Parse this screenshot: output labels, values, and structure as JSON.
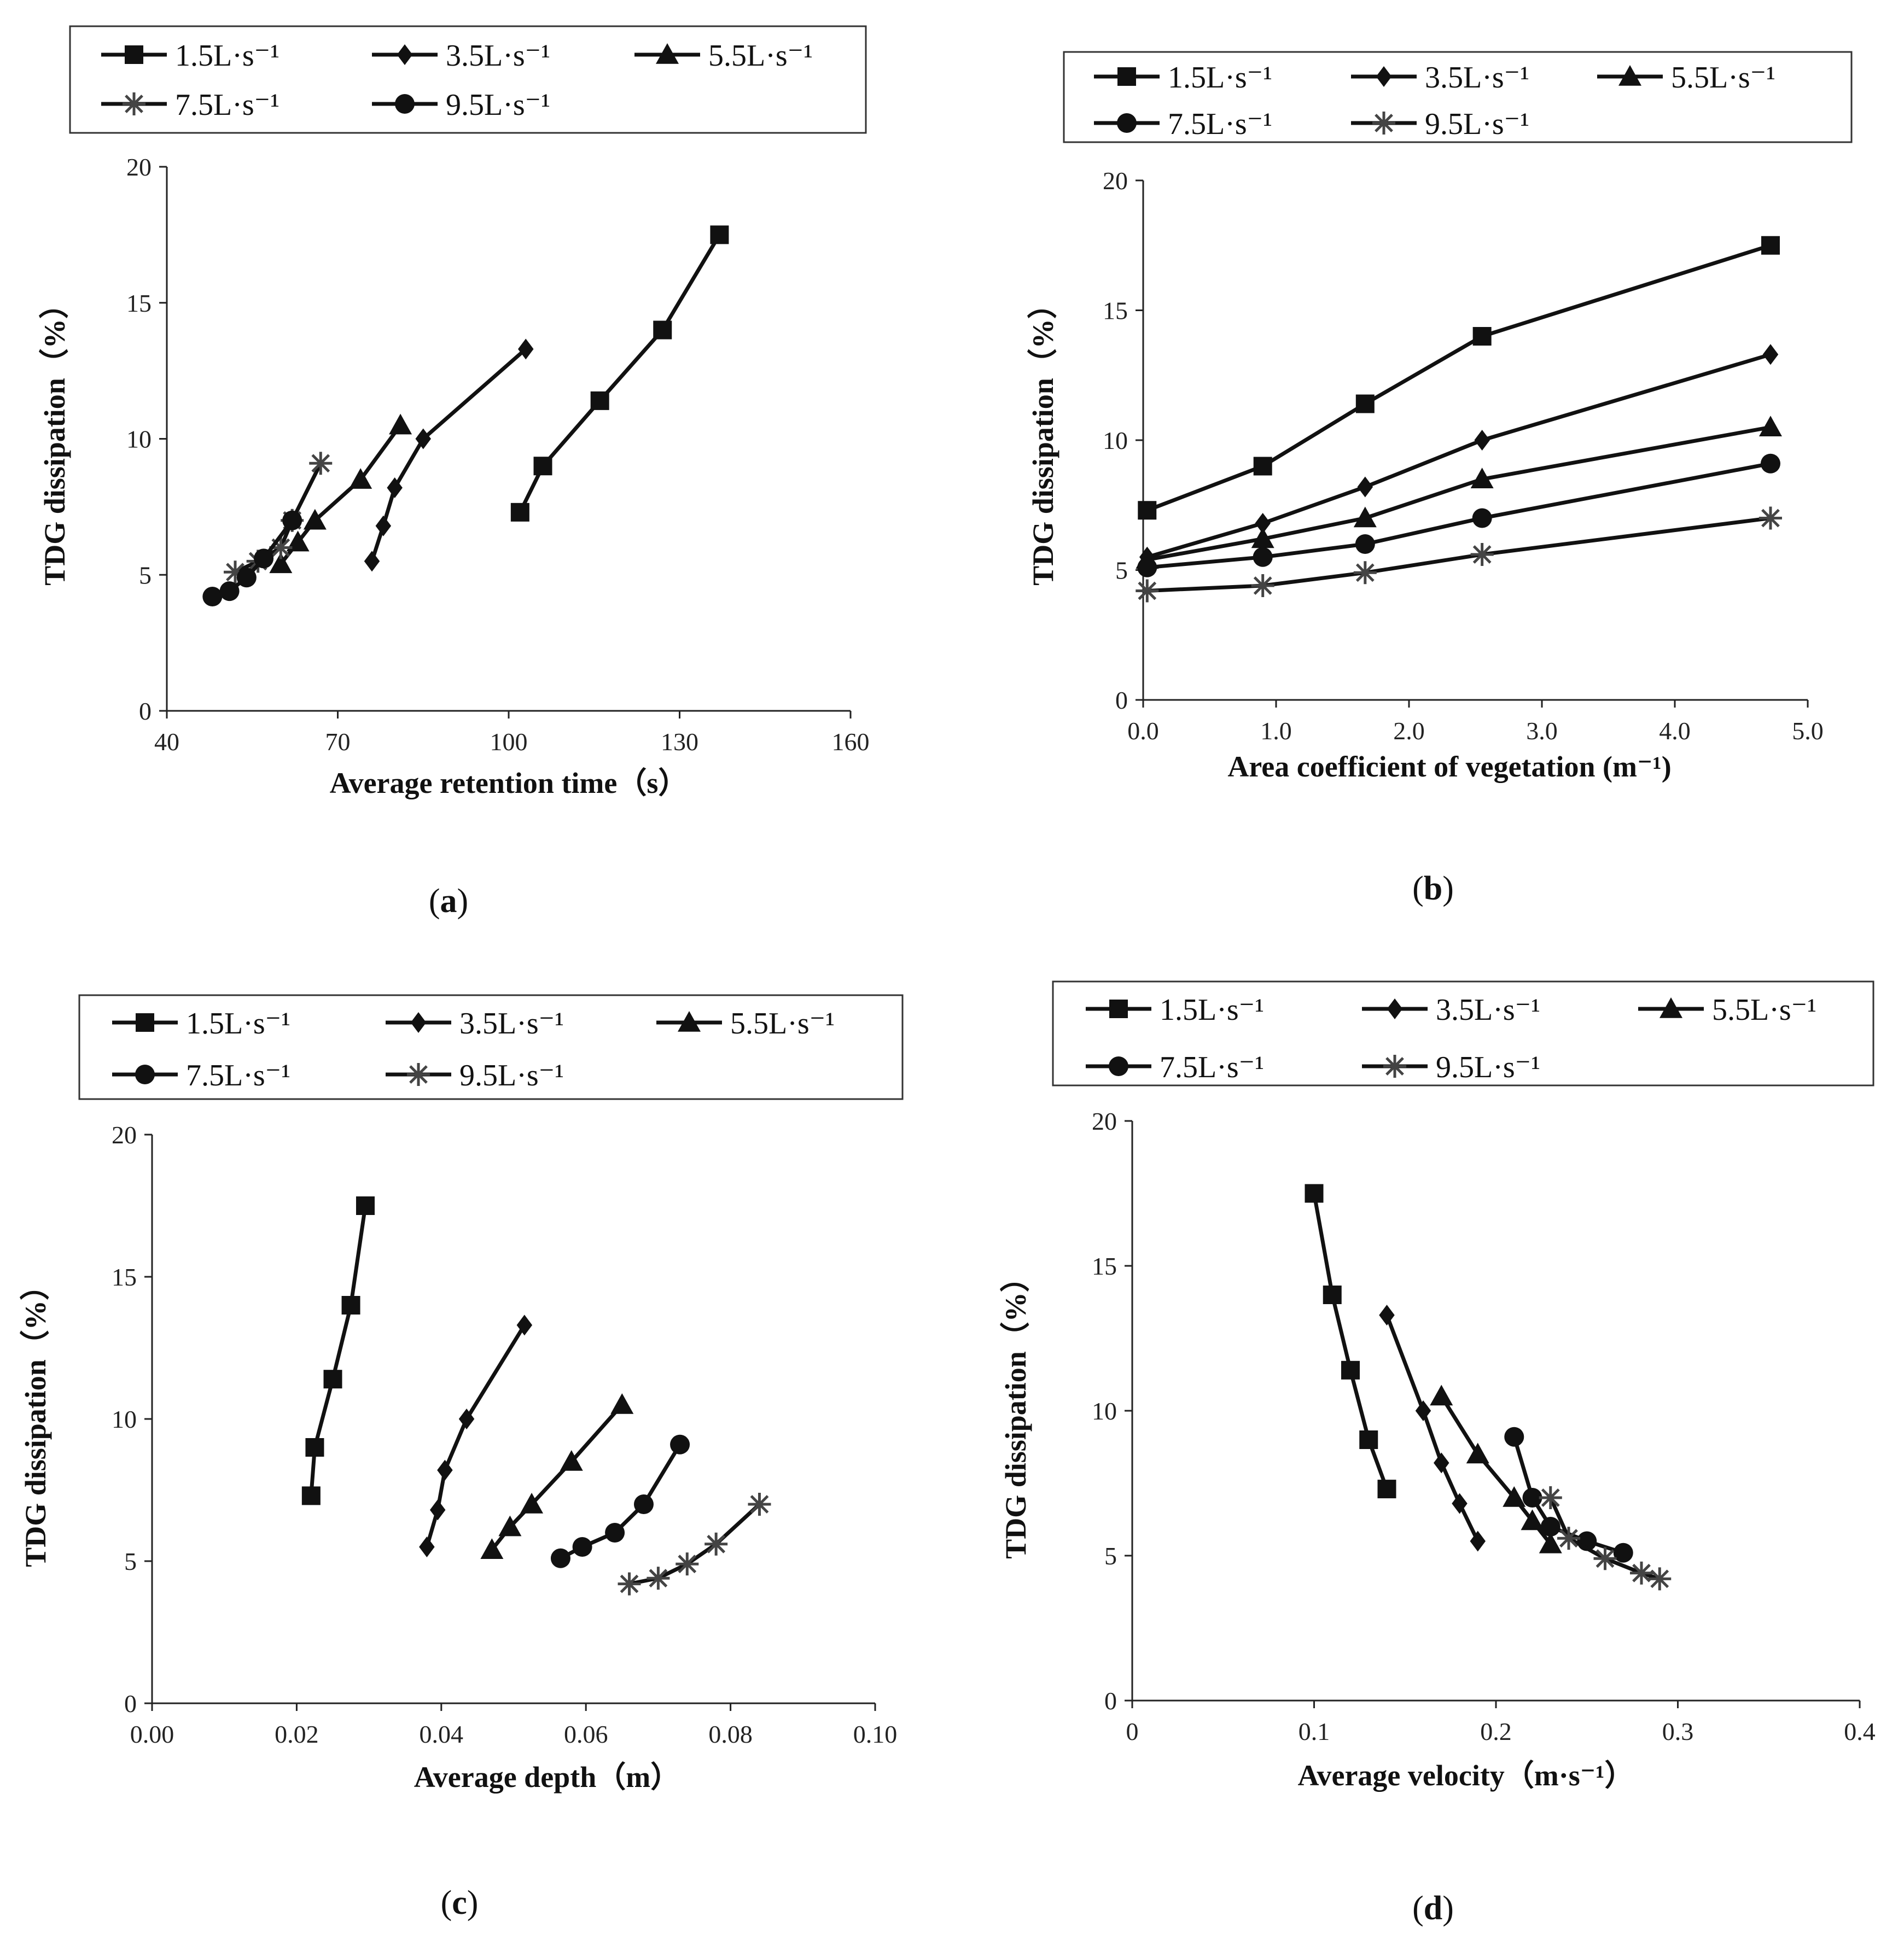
{
  "chart_data": [
    {
      "id": "a",
      "panel_label": "a",
      "type": "line",
      "xlabel": "Average retention time（s）",
      "ylabel": "TDG dissipation（%）",
      "xlim": [
        40,
        160
      ],
      "ylim": [
        0,
        20
      ],
      "xticks": [
        "40",
        "70",
        "100",
        "130",
        "160"
      ],
      "yticks": [
        "0",
        "5",
        "10",
        "15",
        "20"
      ],
      "legend": [
        "1.5L·s⁻¹",
        "3.5L·s⁻¹",
        "5.5L·s⁻¹",
        "7.5L·s⁻¹",
        "9.5L·s⁻¹"
      ],
      "series": [
        {
          "name": "1.5L·s⁻¹",
          "marker": "square",
          "x": [
            102,
            106,
            116,
            127,
            137
          ],
          "y": [
            7.3,
            9.0,
            11.4,
            14.0,
            17.5
          ]
        },
        {
          "name": "3.5L·s⁻¹",
          "marker": "diamond",
          "x": [
            76,
            78,
            80,
            85,
            103
          ],
          "y": [
            5.5,
            6.8,
            8.2,
            10.0,
            13.3
          ]
        },
        {
          "name": "5.5L·s⁻¹",
          "marker": "triangle",
          "x": [
            60,
            63,
            66,
            74,
            81
          ],
          "y": [
            5.4,
            6.2,
            7.0,
            8.5,
            10.5
          ]
        },
        {
          "name": "7.5L·s⁻¹",
          "marker": "asterisk",
          "x": [
            52,
            56,
            60,
            62,
            67
          ],
          "y": [
            5.1,
            5.5,
            6.0,
            7.0,
            9.1
          ]
        },
        {
          "name": "9.5L·s⁻¹",
          "marker": "circle",
          "x": [
            48,
            51,
            54,
            57,
            62
          ],
          "y": [
            4.2,
            4.4,
            4.9,
            5.6,
            7.0
          ]
        }
      ]
    },
    {
      "id": "b",
      "panel_label": "b",
      "type": "line",
      "xlabel": "Area coefficient of vegetation (m⁻¹)",
      "ylabel": "TDG dissipation（%）",
      "xlim": [
        0,
        5
      ],
      "ylim": [
        0,
        20
      ],
      "xticks": [
        "0.0",
        "1.0",
        "2.0",
        "3.0",
        "4.0",
        "5.0"
      ],
      "yticks": [
        "0",
        "5",
        "10",
        "15",
        "20"
      ],
      "legend": [
        "1.5L·s⁻¹",
        "3.5L·s⁻¹",
        "5.5L·s⁻¹",
        "7.5L·s⁻¹",
        "9.5L·s⁻¹"
      ],
      "series": [
        {
          "name": "1.5L·s⁻¹",
          "marker": "square",
          "x": [
            0.03,
            0.9,
            1.67,
            2.55,
            4.72
          ],
          "y": [
            7.3,
            9.0,
            11.4,
            14.0,
            17.5
          ]
        },
        {
          "name": "3.5L·s⁻¹",
          "marker": "diamond",
          "x": [
            0.03,
            0.9,
            1.67,
            2.55,
            4.72
          ],
          "y": [
            5.5,
            6.8,
            8.2,
            10.0,
            13.3
          ]
        },
        {
          "name": "5.5L·s⁻¹",
          "marker": "triangle",
          "x": [
            0.03,
            0.9,
            1.67,
            2.55,
            4.72
          ],
          "y": [
            5.4,
            6.2,
            7.0,
            8.5,
            10.5
          ]
        },
        {
          "name": "7.5L·s⁻¹",
          "marker": "circle",
          "x": [
            0.03,
            0.9,
            1.67,
            2.55,
            4.72
          ],
          "y": [
            5.1,
            5.5,
            6.0,
            7.0,
            9.1
          ]
        },
        {
          "name": "9.5L·s⁻¹",
          "marker": "asterisk",
          "x": [
            0.03,
            0.9,
            1.67,
            2.55,
            4.72
          ],
          "y": [
            4.2,
            4.4,
            4.9,
            5.6,
            7.0
          ]
        }
      ]
    },
    {
      "id": "c",
      "panel_label": "c",
      "type": "line",
      "xlabel": "Average depth（m）",
      "ylabel": "TDG dissipation（%）",
      "xlim": [
        0,
        0.1
      ],
      "ylim": [
        0,
        20
      ],
      "xticks": [
        "0.00",
        "0.02",
        "0.04",
        "0.06",
        "0.08",
        "0.10"
      ],
      "yticks": [
        "0",
        "5",
        "10",
        "15",
        "20"
      ],
      "legend": [
        "1.5L·s⁻¹",
        "3.5L·s⁻¹",
        "5.5L·s⁻¹",
        "7.5L·s⁻¹",
        "9.5L·s⁻¹"
      ],
      "series": [
        {
          "name": "1.5L·s⁻¹",
          "marker": "square",
          "x": [
            0.022,
            0.0225,
            0.025,
            0.0275,
            0.0295
          ],
          "y": [
            7.3,
            9.0,
            11.4,
            14.0,
            17.5
          ]
        },
        {
          "name": "3.5L·s⁻¹",
          "marker": "diamond",
          "x": [
            0.038,
            0.0395,
            0.0405,
            0.0435,
            0.0515
          ],
          "y": [
            5.5,
            6.8,
            8.2,
            10.0,
            13.3
          ]
        },
        {
          "name": "5.5L·s⁻¹",
          "marker": "triangle",
          "x": [
            0.047,
            0.0495,
            0.0525,
            0.058,
            0.065
          ],
          "y": [
            5.4,
            6.2,
            7.0,
            8.5,
            10.5
          ]
        },
        {
          "name": "7.5L·s⁻¹",
          "marker": "circle",
          "x": [
            0.0565,
            0.0595,
            0.064,
            0.068,
            0.073
          ],
          "y": [
            5.1,
            5.5,
            6.0,
            7.0,
            9.1
          ]
        },
        {
          "name": "9.5L·s⁻¹",
          "marker": "asterisk",
          "x": [
            0.066,
            0.07,
            0.074,
            0.078,
            0.084
          ],
          "y": [
            4.2,
            4.4,
            4.9,
            5.6,
            7.0
          ]
        }
      ]
    },
    {
      "id": "d",
      "panel_label": "d",
      "type": "line",
      "xlabel": "Average velocity（m·s⁻¹）",
      "ylabel": "TDG dissipation（%）",
      "xlim": [
        0,
        0.4
      ],
      "ylim": [
        0,
        20
      ],
      "xticks": [
        "0",
        "0.1",
        "0.2",
        "0.3",
        "0.4"
      ],
      "yticks": [
        "0",
        "5",
        "10",
        "15",
        "20"
      ],
      "legend": [
        "1.5L·s⁻¹",
        "3.5L·s⁻¹",
        "5.5L·s⁻¹",
        "7.5L·s⁻¹",
        "9.5L·s⁻¹"
      ],
      "series": [
        {
          "name": "1.5L·s⁻¹",
          "marker": "square",
          "x": [
            0.14,
            0.13,
            0.12,
            0.11,
            0.1
          ],
          "y": [
            7.3,
            9.0,
            11.4,
            14.0,
            17.5
          ]
        },
        {
          "name": "3.5L·s⁻¹",
          "marker": "diamond",
          "x": [
            0.19,
            0.18,
            0.17,
            0.16,
            0.14
          ],
          "y": [
            5.5,
            6.8,
            8.2,
            10.0,
            13.3
          ]
        },
        {
          "name": "5.5L·s⁻¹",
          "marker": "triangle",
          "x": [
            0.23,
            0.22,
            0.21,
            0.19,
            0.17
          ],
          "y": [
            5.4,
            6.2,
            7.0,
            8.5,
            10.5
          ]
        },
        {
          "name": "7.5L·s⁻¹",
          "marker": "circle",
          "x": [
            0.27,
            0.25,
            0.23,
            0.22,
            0.21
          ],
          "y": [
            5.1,
            5.5,
            6.0,
            7.0,
            9.1
          ]
        },
        {
          "name": "9.5L·s⁻¹",
          "marker": "asterisk",
          "x": [
            0.29,
            0.28,
            0.26,
            0.24,
            0.23
          ],
          "y": [
            4.2,
            4.4,
            4.9,
            5.6,
            7.0
          ]
        }
      ]
    }
  ]
}
